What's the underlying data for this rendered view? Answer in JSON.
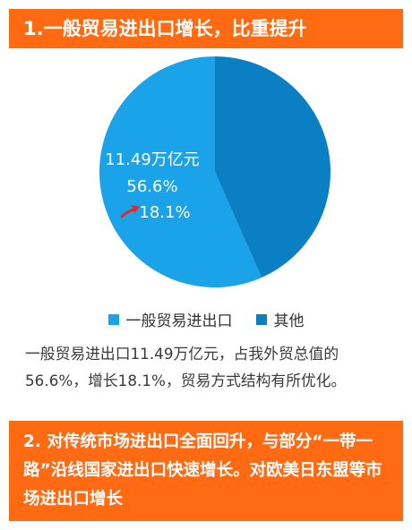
{
  "header": {
    "title": "1.一般贸易进出口增长，比重提升"
  },
  "chart_data": {
    "type": "pie",
    "series": [
      {
        "name": "一般贸易进出口",
        "value": 56.6,
        "color": "#1aa3e8"
      },
      {
        "name": "其他",
        "value": 43.4,
        "color": "#0a7fc4"
      }
    ],
    "annotations": {
      "amount": "11.49万亿元",
      "share": "56.6%",
      "growth": "18.1%"
    },
    "arrow_color": "#e8232b"
  },
  "legend": [
    {
      "label": "一般贸易进出口",
      "color": "#1aa3e8"
    },
    {
      "label": "其他",
      "color": "#0a7fc4"
    }
  ],
  "caption": "一般贸易进出口11.49万亿元，占我外贸总值的56.6%，增长18.1%，贸易方式结构有所优化。",
  "footer": {
    "title": "2. 对传统市场进出口全面回升，与部分“一带一路”沿线国家进出口快速增长。对欧美日东盟等市场进出口增长"
  }
}
